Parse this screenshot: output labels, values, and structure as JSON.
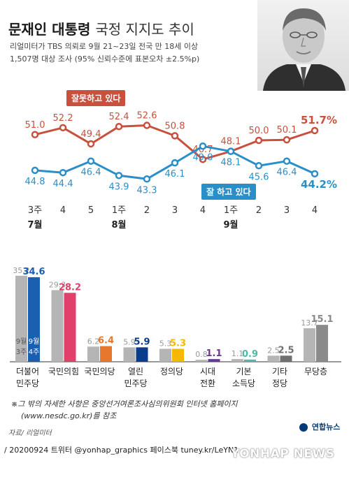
{
  "title": {
    "main": "문재인 대통령",
    "rest": "국정 지지도 추이"
  },
  "subtitle_lines": [
    "리얼미터가 TBS 의뢰로 9월 21~23일 전국 만 18세 이상",
    "1,507명 대상 조사 (95% 신뢰수준에 표본오차 ±2.5%p)"
  ],
  "colors": {
    "negative": "#c8503c",
    "positive": "#2a8fc8",
    "gray_bar": "#b5b5b5",
    "dark_gray_bar": "#8a8a8a"
  },
  "chart_data": [
    {
      "type": "line",
      "x": [
        "3주",
        "4",
        "5",
        "1주",
        "2",
        "3",
        "4",
        "1주",
        "2",
        "3",
        "4"
      ],
      "month_labels": [
        {
          "at": 0,
          "label": "7월"
        },
        {
          "at": 3,
          "label": "8월"
        },
        {
          "at": 7,
          "label": "9월"
        }
      ],
      "series": [
        {
          "name": "잘못하고 있다",
          "color": "#c8503c",
          "values": [
            51.0,
            52.2,
            49.4,
            52.4,
            52.6,
            50.8,
            46.7,
            48.1,
            50.0,
            50.1,
            51.7
          ]
        },
        {
          "name": "잘 하고 있다",
          "color": "#2a8fc8",
          "values": [
            44.8,
            44.4,
            46.4,
            43.9,
            43.3,
            46.1,
            49.0,
            48.1,
            45.6,
            46.4,
            44.2
          ]
        }
      ],
      "value_labels": {
        "negative": [
          "51.0",
          "52.2",
          "49.4",
          "52.4",
          "52.6",
          "50.8",
          "46.7",
          "48.1",
          "50.0",
          "50.1",
          "51.7%"
        ],
        "positive": [
          "44.8",
          "44.4",
          "46.4",
          "43.9",
          "43.3",
          "46.1",
          "49.0",
          "48.1",
          "45.6",
          "46.4",
          "44.2%"
        ]
      },
      "ylim": [
        38,
        58
      ]
    },
    {
      "type": "bar",
      "categories": [
        [
          "더불어",
          "민주당"
        ],
        [
          "국민의힘"
        ],
        [
          "국민의당"
        ],
        [
          "열린",
          "민주당"
        ],
        [
          "정의당"
        ],
        [
          "시대",
          "전환"
        ],
        [
          "기본",
          "소득당"
        ],
        [
          "기타",
          "정당"
        ],
        [
          "무당층"
        ]
      ],
      "series": [
        {
          "name": "9월 3주",
          "values": [
            35.2,
            29.3,
            6.2,
            5.9,
            5.3,
            0.8,
            1.1,
            2.5,
            13.7
          ]
        },
        {
          "name": "9월 4주",
          "values": [
            34.6,
            28.2,
            6.4,
            5.9,
            5.3,
            1.1,
            0.9,
            2.5,
            15.1
          ]
        }
      ],
      "value_labels": {
        "prev": [
          "35.2",
          "29.3",
          "6.2",
          "5.9",
          "5.3",
          "0.8",
          "1.1",
          "2.5",
          "13.7"
        ],
        "curr": [
          "34.6",
          "28.2",
          "6.4",
          "5.9",
          "5.3",
          "1.1",
          "0.9",
          "2.5",
          "15.1"
        ]
      },
      "bar_colors": [
        "#1a5fb0",
        "#e0406a",
        "#e8772e",
        "#0a3d8a",
        "#f5b800",
        "#6b3594",
        "#4fb8a8",
        "#707070",
        "#8a8a8a"
      ],
      "legend_in_bar": {
        "prev": [
          "9월",
          "3주"
        ],
        "curr": [
          "9월",
          "4주"
        ]
      },
      "ylim": [
        0,
        40
      ]
    }
  ],
  "callouts": {
    "negative": "잘못하고 있다",
    "positive": "잘 하고 있다"
  },
  "footnote_lines": [
    "※그 밖의 자세한 사항은 중앙선거여론조사심의위원회 인터넷 홈페이지",
    "(www.nesdc.go.kr)를 참조"
  ],
  "source": "자료/ 리얼미터",
  "logo": "연합뉴스",
  "credit": "/ 20200924  트위터 @yonhap_graphics  페이스북 tuney.kr/LeYN1",
  "watermark": "YONHAP NEWS"
}
